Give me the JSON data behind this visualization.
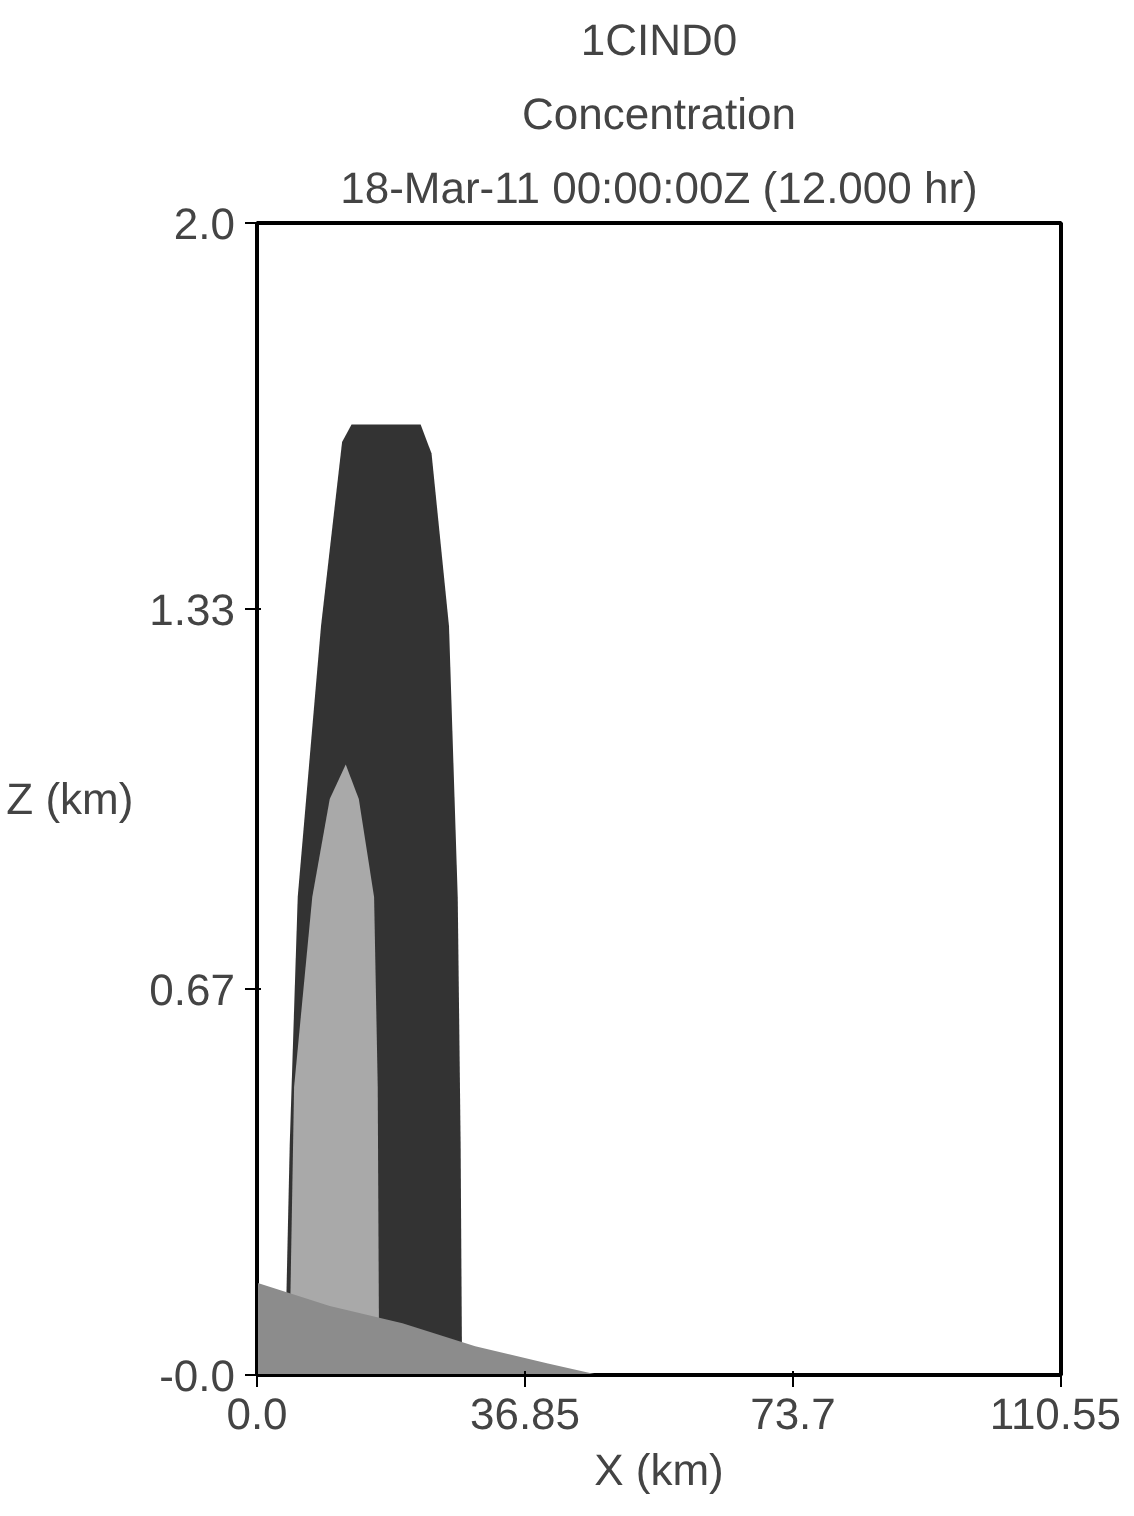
{
  "chart_data": {
    "type": "area",
    "title": "1CIND0",
    "subtitle": "Concentration",
    "annotations": [
      "18-Mar-11 00:00:00Z (12.000 hr)"
    ],
    "xlabel": "X (km)",
    "ylabel": "Z (km)",
    "xlim": [
      0,
      110.55
    ],
    "ylim": [
      0,
      2.0
    ],
    "xticks": [
      {
        "value": 0,
        "label": "0.0"
      },
      36.85,
      73.7,
      110.55
    ],
    "yticks": [
      {
        "value": 0,
        "label": "-0.0"
      },
      0.67,
      1.33,
      {
        "value": 2,
        "label": "2.0"
      }
    ],
    "grid": false,
    "series": [
      {
        "color": "#333333",
        "x": [
          3.8,
          4.5,
          5.6,
          8.8,
          11.7,
          13,
          22.5,
          24,
          26.4,
          27.6,
          28,
          28.2
        ],
        "values": [
          0,
          0.4,
          0.83,
          1.3,
          1.62,
          1.65,
          1.65,
          1.6,
          1.3,
          0.83,
          0.4,
          0
        ]
      },
      {
        "color": "#a9a9a9",
        "x": [
          4.4,
          5.1,
          7.6,
          10,
          12.2,
          14,
          16.1,
          16.6,
          16.8
        ],
        "values": [
          0,
          0.5,
          0.83,
          1.0,
          1.06,
          1.0,
          0.83,
          0.5,
          0
        ]
      },
      {
        "color": "#8c8c8c",
        "x": [
          0,
          10,
          20,
          30,
          40,
          47,
          110.55
        ],
        "values": [
          0.16,
          0.12,
          0.09,
          0.05,
          0.02,
          0,
          0
        ]
      }
    ]
  }
}
